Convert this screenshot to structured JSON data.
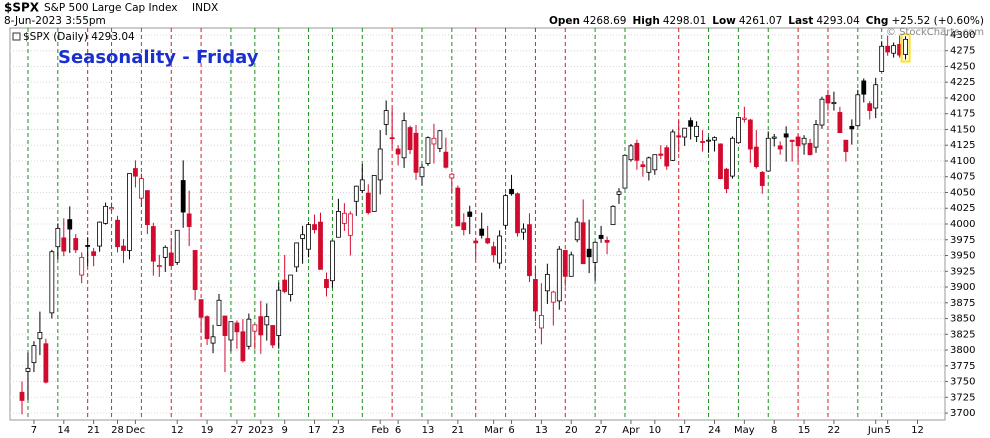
{
  "header": {
    "symbol": "$SPX",
    "name": "S&P 500 Large Cap Index",
    "exchange": "INDX",
    "datetime": "8-Jun-2023 3:55pm",
    "quote": [
      {
        "label": "Open",
        "value": 4268.69
      },
      {
        "label": "High",
        "value": 4298.01
      },
      {
        "label": "Low",
        "value": 4261.07
      },
      {
        "label": "Last",
        "value": 4293.04
      },
      {
        "label": "Chg",
        "value": "+25.52 (+0.60%)"
      }
    ],
    "watermark": "© StockCharts.com"
  },
  "chart_data": {
    "type": "candlestick",
    "title": "Seasonality - Friday",
    "legend": "$SPX (Daily) 4293.04",
    "up_color": "#000000",
    "down_color": "#d10a2e",
    "friday_up_color": "#1a8f1a",
    "friday_down_color": "#d81e1e",
    "highlight_last": "#ffe21a",
    "grid": true,
    "ylim": [
      3689,
      4311
    ],
    "yticks": [
      3700,
      3725,
      3750,
      3775,
      3800,
      3825,
      3850,
      3875,
      3900,
      3925,
      3950,
      3975,
      4000,
      4025,
      4050,
      4075,
      4100,
      4125,
      4150,
      4175,
      4200,
      4225,
      4250,
      4275,
      4300
    ],
    "xticks": [
      {
        "value": "2022-11-07",
        "label": "7"
      },
      {
        "value": "2022-11-14",
        "label": "14"
      },
      {
        "value": "2022-11-21",
        "label": "21"
      },
      {
        "value": "2022-11-28",
        "label": "28"
      },
      {
        "value": "2022-12-01",
        "label": "Dec"
      },
      {
        "value": "2022-12-12",
        "label": "12"
      },
      {
        "value": "2022-12-19",
        "label": "19"
      },
      {
        "value": "2022-12-27",
        "label": "27"
      },
      {
        "value": "2023-01-03",
        "label": "2023"
      },
      {
        "value": "2023-01-09",
        "label": "9"
      },
      {
        "value": "2023-01-17",
        "label": "17"
      },
      {
        "value": "2023-01-23",
        "label": "23"
      },
      {
        "value": "2023-02-01",
        "label": "Feb"
      },
      {
        "value": "2023-02-06",
        "label": "6"
      },
      {
        "value": "2023-02-13",
        "label": "13"
      },
      {
        "value": "2023-02-21",
        "label": "21"
      },
      {
        "value": "2023-03-01",
        "label": "Mar"
      },
      {
        "value": "2023-03-06",
        "label": "6"
      },
      {
        "value": "2023-03-13",
        "label": "13"
      },
      {
        "value": "2023-03-20",
        "label": "20"
      },
      {
        "value": "2023-03-27",
        "label": "27"
      },
      {
        "value": "2023-04-03",
        "label": "Apr"
      },
      {
        "value": "2023-04-10",
        "label": "10"
      },
      {
        "value": "2023-04-17",
        "label": "17"
      },
      {
        "value": "2023-04-24",
        "label": "24"
      },
      {
        "value": "2023-05-01",
        "label": "May"
      },
      {
        "value": "2023-05-08",
        "label": "8"
      },
      {
        "value": "2023-05-15",
        "label": "15"
      },
      {
        "value": "2023-05-22",
        "label": "22"
      },
      {
        "value": "2023-06-01",
        "label": "Jun"
      },
      {
        "value": "2023-06-05",
        "label": "5"
      },
      {
        "value": "2023-06-12",
        "label": "12"
      }
    ],
    "x": [
      "2022-11-03",
      "2022-11-04",
      "2022-11-07",
      "2022-11-08",
      "2022-11-09",
      "2022-11-10",
      "2022-11-11",
      "2022-11-14",
      "2022-11-15",
      "2022-11-16",
      "2022-11-17",
      "2022-11-18",
      "2022-11-21",
      "2022-11-22",
      "2022-11-23",
      "2022-11-25",
      "2022-11-28",
      "2022-11-29",
      "2022-11-30",
      "2022-12-01",
      "2022-12-02",
      "2022-12-05",
      "2022-12-06",
      "2022-12-07",
      "2022-12-08",
      "2022-12-09",
      "2022-12-12",
      "2022-12-13",
      "2022-12-14",
      "2022-12-15",
      "2022-12-16",
      "2022-12-19",
      "2022-12-20",
      "2022-12-21",
      "2022-12-22",
      "2022-12-23",
      "2022-12-27",
      "2022-12-28",
      "2022-12-29",
      "2022-12-30",
      "2023-01-03",
      "2023-01-04",
      "2023-01-05",
      "2023-01-06",
      "2023-01-09",
      "2023-01-10",
      "2023-01-11",
      "2023-01-12",
      "2023-01-13",
      "2023-01-17",
      "2023-01-18",
      "2023-01-19",
      "2023-01-20",
      "2023-01-23",
      "2023-01-24",
      "2023-01-25",
      "2023-01-26",
      "2023-01-27",
      "2023-01-30",
      "2023-01-31",
      "2023-02-01",
      "2023-02-02",
      "2023-02-03",
      "2023-02-06",
      "2023-02-07",
      "2023-02-08",
      "2023-02-09",
      "2023-02-10",
      "2023-02-13",
      "2023-02-14",
      "2023-02-15",
      "2023-02-16",
      "2023-02-17",
      "2023-02-21",
      "2023-02-22",
      "2023-02-23",
      "2023-02-24",
      "2023-02-27",
      "2023-02-28",
      "2023-03-01",
      "2023-03-02",
      "2023-03-03",
      "2023-03-06",
      "2023-03-07",
      "2023-03-08",
      "2023-03-09",
      "2023-03-10",
      "2023-03-13",
      "2023-03-14",
      "2023-03-15",
      "2023-03-16",
      "2023-03-17",
      "2023-03-20",
      "2023-03-21",
      "2023-03-22",
      "2023-03-23",
      "2023-03-24",
      "2023-03-27",
      "2023-03-28",
      "2023-03-29",
      "2023-03-30",
      "2023-03-31",
      "2023-04-03",
      "2023-04-04",
      "2023-04-05",
      "2023-04-06",
      "2023-04-10",
      "2023-04-11",
      "2023-04-12",
      "2023-04-13",
      "2023-04-14",
      "2023-04-17",
      "2023-04-18",
      "2023-04-19",
      "2023-04-20",
      "2023-04-21",
      "2023-04-24",
      "2023-04-25",
      "2023-04-26",
      "2023-04-27",
      "2023-04-28",
      "2023-05-01",
      "2023-05-02",
      "2023-05-03",
      "2023-05-04",
      "2023-05-05",
      "2023-05-08",
      "2023-05-09",
      "2023-05-10",
      "2023-05-11",
      "2023-05-12",
      "2023-05-15",
      "2023-05-16",
      "2023-05-17",
      "2023-05-18",
      "2023-05-19",
      "2023-05-22",
      "2023-05-23",
      "2023-05-24",
      "2023-05-25",
      "2023-05-26",
      "2023-05-30",
      "2023-05-31",
      "2023-06-01",
      "2023-06-02",
      "2023-06-05",
      "2023-06-06",
      "2023-06-07",
      "2023-06-08"
    ],
    "candles": [
      [
        3733,
        3750,
        3698,
        3720
      ],
      [
        3766,
        3796,
        3721,
        3771
      ],
      [
        3780,
        3814,
        3765,
        3807
      ],
      [
        3818,
        3861,
        3792,
        3828
      ],
      [
        3810,
        3818,
        3747,
        3749
      ],
      [
        3859,
        3959,
        3850,
        3956
      ],
      [
        3964,
        4001,
        3944,
        3993
      ],
      [
        3978,
        4009,
        3949,
        3957
      ],
      [
        4007,
        4028,
        3954,
        3992
      ],
      [
        3977,
        3984,
        3954,
        3959
      ],
      [
        3919,
        3955,
        3906,
        3947
      ],
      [
        3966,
        3979,
        3933,
        3965
      ],
      [
        3956,
        3962,
        3933,
        3950
      ],
      [
        3965,
        4004,
        3956,
        4003
      ],
      [
        4001,
        4034,
        3999,
        4028
      ],
      [
        4024,
        4034,
        4020,
        4026
      ],
      [
        4006,
        4013,
        3955,
        3964
      ],
      [
        3965,
        3976,
        3938,
        3958
      ],
      [
        3958,
        4080,
        3944,
        4080
      ],
      [
        4088,
        4101,
        4058,
        4076
      ],
      [
        4041,
        4080,
        4027,
        4072
      ],
      [
        4053,
        4053,
        3984,
        3999
      ],
      [
        3996,
        4002,
        3918,
        3941
      ],
      [
        3934,
        3951,
        3916,
        3934
      ],
      [
        3947,
        3966,
        3924,
        3963
      ],
      [
        3954,
        3977,
        3933,
        3934
      ],
      [
        3939,
        3990,
        3935,
        3990
      ],
      [
        4069,
        4101,
        3994,
        4019
      ],
      [
        4016,
        4053,
        3965,
        3996
      ],
      [
        3958,
        3958,
        3879,
        3896
      ],
      [
        3880,
        3880,
        3828,
        3852
      ],
      [
        3853,
        3855,
        3808,
        3818
      ],
      [
        3811,
        3840,
        3795,
        3821
      ],
      [
        3839,
        3889,
        3839,
        3879
      ],
      [
        3854,
        3854,
        3765,
        3823
      ],
      [
        3816,
        3845,
        3798,
        3845
      ],
      [
        3843,
        3847,
        3802,
        3829
      ],
      [
        3829,
        3849,
        3780,
        3783
      ],
      [
        3806,
        3858,
        3801,
        3849
      ],
      [
        3830,
        3840,
        3801,
        3840
      ],
      [
        3853,
        3878,
        3794,
        3824
      ],
      [
        3840,
        3874,
        3815,
        3853
      ],
      [
        3839,
        3839,
        3803,
        3808
      ],
      [
        3823,
        3907,
        3802,
        3895
      ],
      [
        3911,
        3951,
        3890,
        3893
      ],
      [
        3888,
        3919,
        3877,
        3919
      ],
      [
        3932,
        3970,
        3924,
        3970
      ],
      [
        3977,
        3997,
        3937,
        3983
      ],
      [
        3960,
        4003,
        3947,
        3999
      ],
      [
        3999,
        4015,
        3985,
        3991
      ],
      [
        4003,
        4018,
        3928,
        3928
      ],
      [
        3912,
        3923,
        3885,
        3899
      ],
      [
        3910,
        3973,
        3899,
        3973
      ],
      [
        3979,
        4040,
        3979,
        4020
      ],
      [
        4001,
        4033,
        3989,
        4017
      ],
      [
        3982,
        4020,
        3950,
        4016
      ],
      [
        4036,
        4061,
        4013,
        4060
      ],
      [
        4053,
        4095,
        4049,
        4070
      ],
      [
        4049,
        4063,
        4015,
        4018
      ],
      [
        4020,
        4077,
        4020,
        4077
      ],
      [
        4070,
        4149,
        4047,
        4119
      ],
      [
        4158,
        4196,
        4141,
        4180
      ],
      [
        4137,
        4183,
        4120,
        4136
      ],
      [
        4119,
        4125,
        4093,
        4111
      ],
      [
        4105,
        4177,
        4089,
        4164
      ],
      [
        4153,
        4156,
        4111,
        4118
      ],
      [
        4144,
        4157,
        4070,
        4082
      ],
      [
        4075,
        4095,
        4061,
        4090
      ],
      [
        4096,
        4139,
        4092,
        4137
      ],
      [
        4127,
        4159,
        4096,
        4136
      ],
      [
        4120,
        4149,
        4114,
        4148
      ],
      [
        4114,
        4137,
        4088,
        4090
      ],
      [
        4073,
        4081,
        4048,
        4079
      ],
      [
        4057,
        4061,
        3997,
        3997
      ],
      [
        4002,
        4017,
        3982,
        3991
      ],
      [
        4019,
        4029,
        3984,
        4012
      ],
      [
        3973,
        3978,
        3944,
        3970
      ],
      [
        3992,
        4018,
        3977,
        3982
      ],
      [
        3977,
        3997,
        3968,
        3970
      ],
      [
        3964,
        3972,
        3939,
        3951
      ],
      [
        3938,
        3990,
        3929,
        3981
      ],
      [
        3998,
        4048,
        3991,
        4045
      ],
      [
        4055,
        4078,
        4045,
        4048
      ],
      [
        4048,
        4050,
        3980,
        3986
      ],
      [
        3987,
        4001,
        3975,
        3992
      ],
      [
        3999,
        4017,
        3908,
        3918
      ],
      [
        3912,
        3934,
        3846,
        3862
      ],
      [
        3835,
        3906,
        3809,
        3855
      ],
      [
        3894,
        3937,
        3873,
        3920
      ],
      [
        3876,
        3894,
        3839,
        3892
      ],
      [
        3878,
        3965,
        3864,
        3960
      ],
      [
        3958,
        3959,
        3901,
        3917
      ],
      [
        3917,
        3956,
        3917,
        3951
      ],
      [
        3975,
        4010,
        3971,
        4003
      ],
      [
        4002,
        4039,
        3937,
        3937
      ],
      [
        3960,
        4007,
        3922,
        3948
      ],
      [
        3939,
        3972,
        3910,
        3971
      ],
      [
        3982,
        3997,
        3970,
        3977
      ],
      [
        3974,
        3980,
        3952,
        3971
      ],
      [
        3999,
        4030,
        3999,
        4028
      ],
      [
        4047,
        4057,
        4032,
        4051
      ],
      [
        4057,
        4110,
        4056,
        4109
      ],
      [
        4102,
        4127,
        4099,
        4124
      ],
      [
        4128,
        4134,
        4086,
        4101
      ],
      [
        4094,
        4100,
        4075,
        4091
      ],
      [
        4082,
        4107,
        4069,
        4105
      ],
      [
        4086,
        4110,
        4078,
        4110
      ],
      [
        4111,
        4125,
        4103,
        4109
      ],
      [
        4121,
        4125,
        4086,
        4092
      ],
      [
        4101,
        4150,
        4100,
        4146
      ],
      [
        4140,
        4164,
        4114,
        4138
      ],
      [
        4138,
        4152,
        4124,
        4152
      ],
      [
        4164,
        4169,
        4134,
        4155
      ],
      [
        4139,
        4163,
        4130,
        4155
      ],
      [
        4131,
        4149,
        4115,
        4130
      ],
      [
        4132,
        4138,
        4113,
        4133
      ],
      [
        4133,
        4139,
        4115,
        4137
      ],
      [
        4127,
        4128,
        4071,
        4072
      ],
      [
        4087,
        4089,
        4049,
        4056
      ],
      [
        4076,
        4139,
        4072,
        4136
      ],
      [
        4129,
        4170,
        4128,
        4169
      ],
      [
        4166,
        4186,
        4161,
        4168
      ],
      [
        4165,
        4167,
        4097,
        4119
      ],
      [
        4122,
        4149,
        4088,
        4091
      ],
      [
        4082,
        4084,
        4048,
        4061
      ],
      [
        4084,
        4147,
        4084,
        4136
      ],
      [
        4136,
        4143,
        4123,
        4138
      ],
      [
        4124,
        4131,
        4110,
        4119
      ],
      [
        4143,
        4155,
        4099,
        4138
      ],
      [
        4133,
        4133,
        4099,
        4131
      ],
      [
        4138,
        4143,
        4099,
        4124
      ],
      [
        4127,
        4141,
        4110,
        4136
      ],
      [
        4128,
        4135,
        4109,
        4110
      ],
      [
        4122,
        4165,
        4113,
        4158
      ],
      [
        4157,
        4202,
        4151,
        4198
      ],
      [
        4204,
        4213,
        4180,
        4192
      ],
      [
        4191,
        4210,
        4180,
        4193
      ],
      [
        4177,
        4186,
        4145,
        4145
      ],
      [
        4133,
        4133,
        4099,
        4115
      ],
      [
        4155,
        4166,
        4126,
        4151
      ],
      [
        4156,
        4213,
        4155,
        4205
      ],
      [
        4227,
        4231,
        4193,
        4206
      ],
      [
        4191,
        4195,
        4166,
        4180
      ],
      [
        4184,
        4232,
        4168,
        4221
      ],
      [
        4242,
        4290,
        4242,
        4282
      ],
      [
        4282,
        4299,
        4267,
        4273
      ],
      [
        4271,
        4288,
        4264,
        4283
      ],
      [
        4285,
        4299,
        4264,
        4268
      ],
      [
        4269,
        4298,
        4261,
        4293
      ]
    ]
  }
}
